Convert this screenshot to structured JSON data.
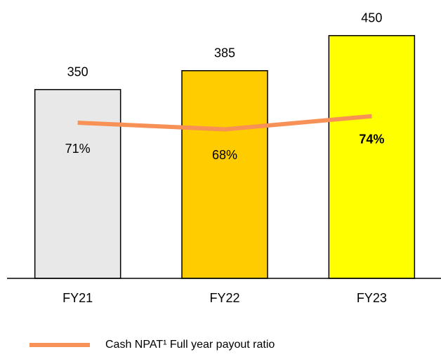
{
  "chart_data": {
    "type": "bar",
    "categories": [
      "FY21",
      "FY22",
      "FY23"
    ],
    "series": [
      {
        "type": "bar",
        "colors": [
          "#e8e8e8",
          "#ffcc00",
          "#ffff00"
        ],
        "values": [
          350,
          385,
          450
        ]
      },
      {
        "type": "line",
        "name": "Cash NPAT¹ Full year payout ratio",
        "color": "#f79156",
        "axis": "y2",
        "values": [
          71,
          68,
          74
        ],
        "value_labels": [
          "71%",
          "68%",
          "74%"
        ]
      }
    ],
    "ylim": [
      0,
      516
    ],
    "y2lim": [
      0,
      127
    ],
    "legend": "bottom"
  }
}
